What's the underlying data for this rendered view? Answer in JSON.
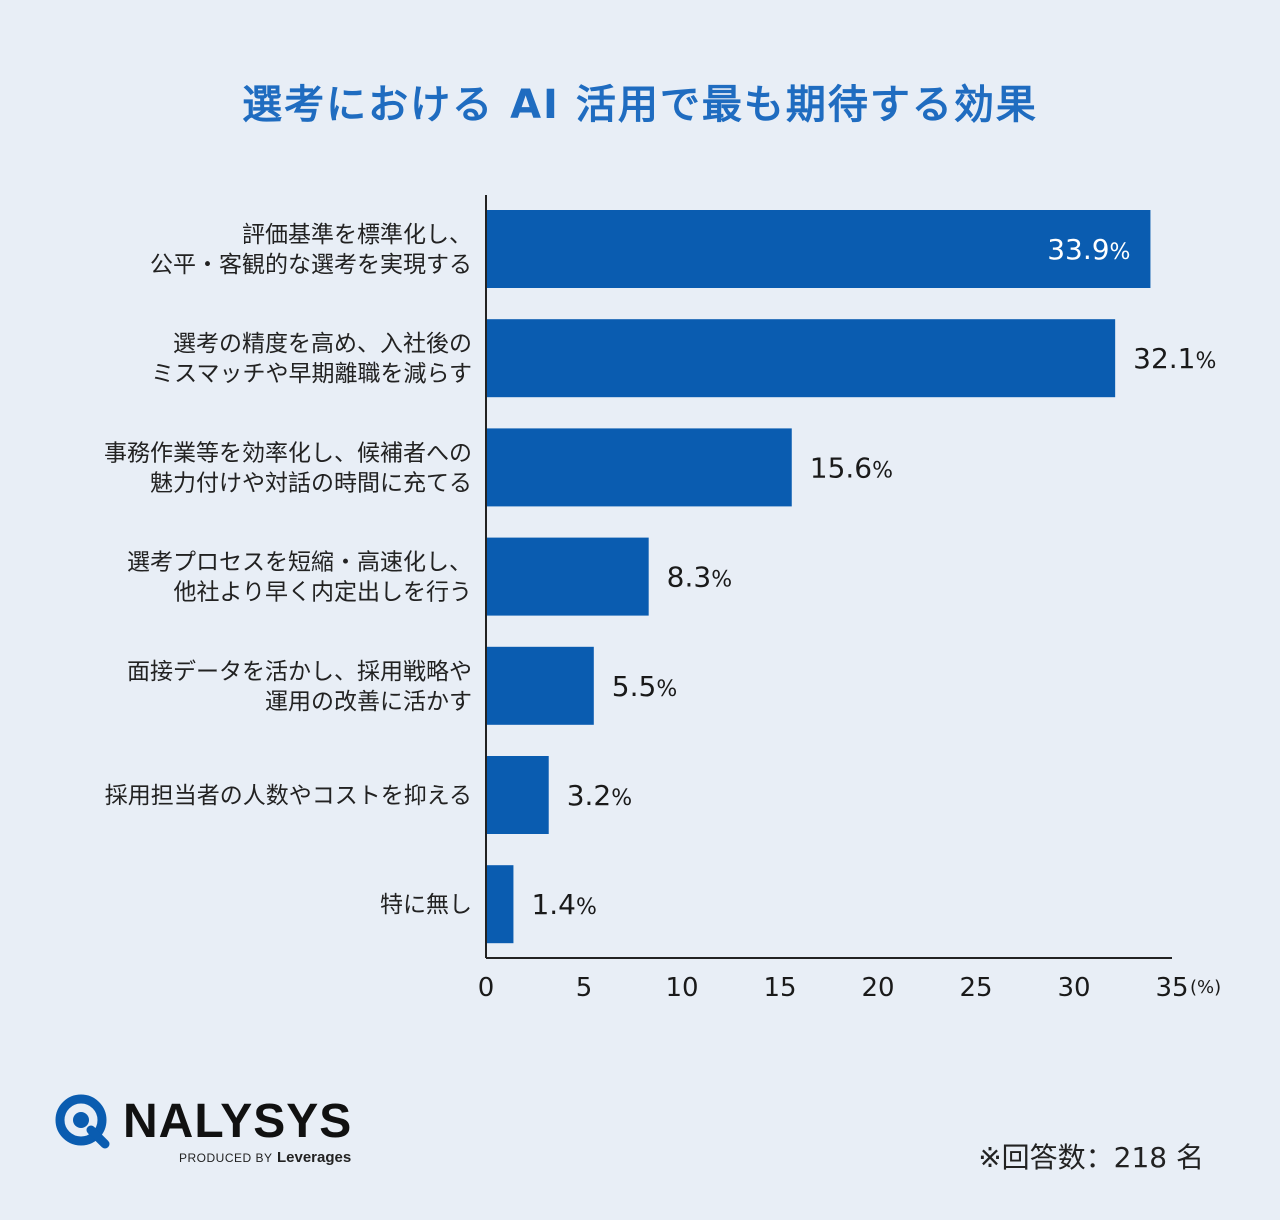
{
  "title": "選考における AI 活用で最も期待する効果",
  "chart_data": {
    "type": "bar",
    "orientation": "horizontal",
    "title": "選考における AI 活用で最も期待する効果",
    "categories": [
      [
        "評価基準を標準化し、",
        "公平・客観的な選考を実現する"
      ],
      [
        "選考の精度を高め、入社後の",
        "ミスマッチや早期離職を減らす"
      ],
      [
        "事務作業等を効率化し、候補者への",
        "魅力付けや対話の時間に充てる"
      ],
      [
        "選考プロセスを短縮・高速化し、",
        "他社より早く内定出しを行う"
      ],
      [
        "面接データを活かし、採用戦略や",
        "運用の改善に活かす"
      ],
      [
        "採用担当者の人数やコストを抑える"
      ],
      [
        "特に無し"
      ]
    ],
    "values": [
      33.9,
      32.1,
      15.6,
      8.3,
      5.5,
      3.2,
      1.4
    ],
    "value_labels": [
      "33.9",
      "32.1",
      "15.6",
      "8.3",
      "5.5",
      "3.2",
      "1.4"
    ],
    "value_unit": "%",
    "xlim": [
      0,
      35
    ],
    "xticks": [
      "0",
      "5",
      "10",
      "15",
      "20",
      "25",
      "30",
      "35"
    ],
    "xunit": "(%)",
    "grid": false,
    "bar_color": "#0a5cb0"
  },
  "logo": {
    "name": "NALYSYS",
    "produced_by": "PRODUCED BY",
    "brand": "Leverages"
  },
  "footnote": "※回答数：218 名"
}
